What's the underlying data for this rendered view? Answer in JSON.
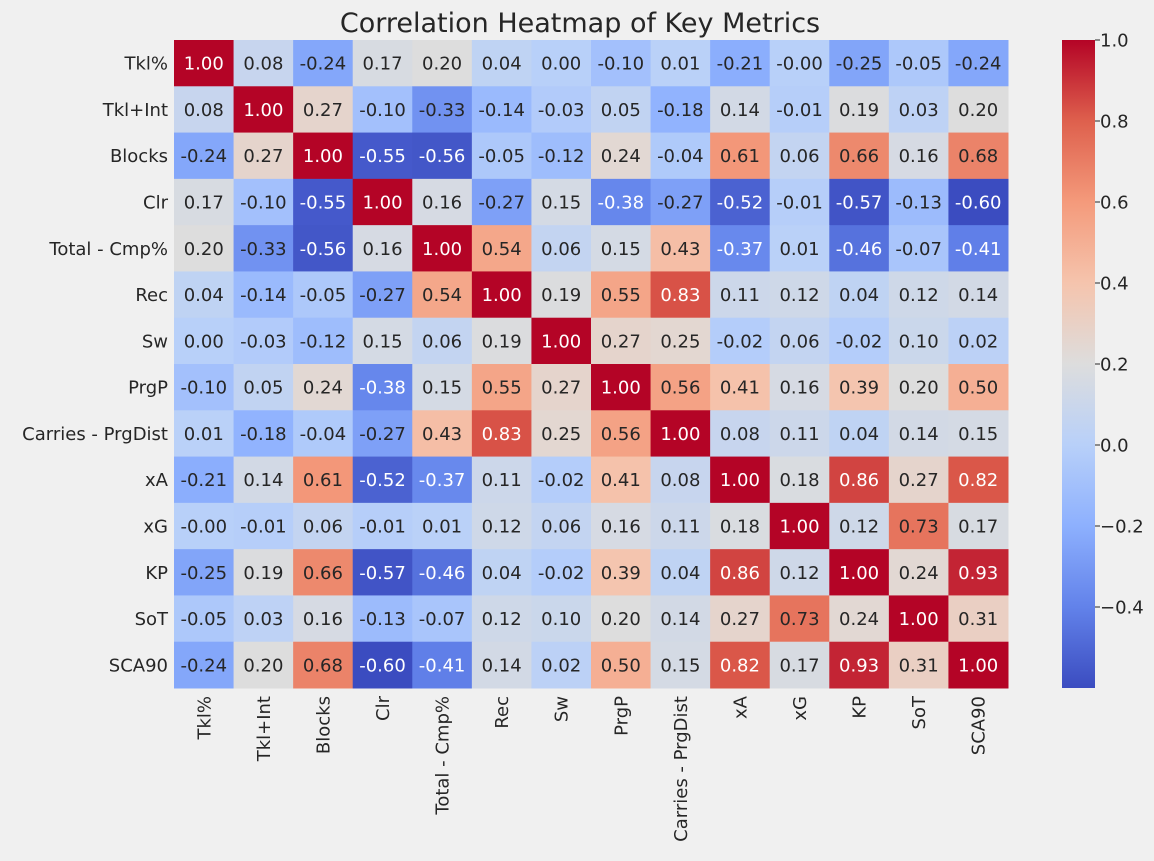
{
  "chart_data": {
    "type": "heatmap",
    "title": "Correlation Heatmap of Key Metrics",
    "rows": [
      "Tkl%",
      "Tkl+Int",
      "Blocks",
      "Clr",
      "Total - Cmp%",
      "Rec",
      "Sw",
      "PrgP",
      "Carries - PrgDist",
      "xA",
      "xG",
      "KP",
      "SoT",
      "SCA90"
    ],
    "columns": [
      "Tkl%",
      "Tkl+Int",
      "Blocks",
      "Clr",
      "Total - Cmp%",
      "Rec",
      "Sw",
      "PrgP",
      "Carries - PrgDist",
      "xA",
      "xG",
      "KP",
      "SoT",
      "SCA90"
    ],
    "values": [
      [
        "1.00",
        "0.08",
        "-0.24",
        "0.17",
        "0.20",
        "0.04",
        "0.00",
        "-0.10",
        "0.01",
        "-0.21",
        "-0.00",
        "-0.25",
        "-0.05",
        "-0.24"
      ],
      [
        "0.08",
        "1.00",
        "0.27",
        "-0.10",
        "-0.33",
        "-0.14",
        "-0.03",
        "0.05",
        "-0.18",
        "0.14",
        "-0.01",
        "0.19",
        "0.03",
        "0.20"
      ],
      [
        "-0.24",
        "0.27",
        "1.00",
        "-0.55",
        "-0.56",
        "-0.05",
        "-0.12",
        "0.24",
        "-0.04",
        "0.61",
        "0.06",
        "0.66",
        "0.16",
        "0.68"
      ],
      [
        "0.17",
        "-0.10",
        "-0.55",
        "1.00",
        "0.16",
        "-0.27",
        "0.15",
        "-0.38",
        "-0.27",
        "-0.52",
        "-0.01",
        "-0.57",
        "-0.13",
        "-0.60"
      ],
      [
        "0.20",
        "-0.33",
        "-0.56",
        "0.16",
        "1.00",
        "0.54",
        "0.06",
        "0.15",
        "0.43",
        "-0.37",
        "0.01",
        "-0.46",
        "-0.07",
        "-0.41"
      ],
      [
        "0.04",
        "-0.14",
        "-0.05",
        "-0.27",
        "0.54",
        "1.00",
        "0.19",
        "0.55",
        "0.83",
        "0.11",
        "0.12",
        "0.04",
        "0.12",
        "0.14"
      ],
      [
        "0.00",
        "-0.03",
        "-0.12",
        "0.15",
        "0.06",
        "0.19",
        "1.00",
        "0.27",
        "0.25",
        "-0.02",
        "0.06",
        "-0.02",
        "0.10",
        "0.02"
      ],
      [
        "-0.10",
        "0.05",
        "0.24",
        "-0.38",
        "0.15",
        "0.55",
        "0.27",
        "1.00",
        "0.56",
        "0.41",
        "0.16",
        "0.39",
        "0.20",
        "0.50"
      ],
      [
        "0.01",
        "-0.18",
        "-0.04",
        "-0.27",
        "0.43",
        "0.83",
        "0.25",
        "0.56",
        "1.00",
        "0.08",
        "0.11",
        "0.04",
        "0.14",
        "0.15"
      ],
      [
        "-0.21",
        "0.14",
        "0.61",
        "-0.52",
        "-0.37",
        "0.11",
        "-0.02",
        "0.41",
        "0.08",
        "1.00",
        "0.18",
        "0.86",
        "0.27",
        "0.82"
      ],
      [
        "-0.00",
        "-0.01",
        "0.06",
        "-0.01",
        "0.01",
        "0.12",
        "0.06",
        "0.16",
        "0.11",
        "0.18",
        "1.00",
        "0.12",
        "0.73",
        "0.17"
      ],
      [
        "-0.25",
        "0.19",
        "0.66",
        "-0.57",
        "-0.46",
        "0.04",
        "-0.02",
        "0.39",
        "0.04",
        "0.86",
        "0.12",
        "1.00",
        "0.24",
        "0.93"
      ],
      [
        "-0.05",
        "0.03",
        "0.16",
        "-0.13",
        "-0.07",
        "0.12",
        "0.10",
        "0.20",
        "0.14",
        "0.27",
        "0.73",
        "0.24",
        "1.00",
        "0.31"
      ],
      [
        "-0.24",
        "0.20",
        "0.68",
        "-0.60",
        "-0.41",
        "0.14",
        "0.02",
        "0.50",
        "0.15",
        "0.82",
        "0.17",
        "0.93",
        "0.31",
        "1.00"
      ]
    ],
    "colormap": "coolwarm",
    "color_range": [
      -0.6,
      1.0
    ],
    "colorbar_ticks": [
      "1.0",
      "0.8",
      "0.6",
      "0.4",
      "0.2",
      "0.0",
      "−0.2",
      "−0.4"
    ],
    "colorbar_tick_values": [
      1.0,
      0.8,
      0.6,
      0.4,
      0.2,
      0.0,
      -0.2,
      -0.4
    ],
    "colors": {
      "background": "#f0f0f0",
      "low": "#3b4cc0",
      "mid": "#dddddd",
      "high": "#b40426"
    }
  }
}
